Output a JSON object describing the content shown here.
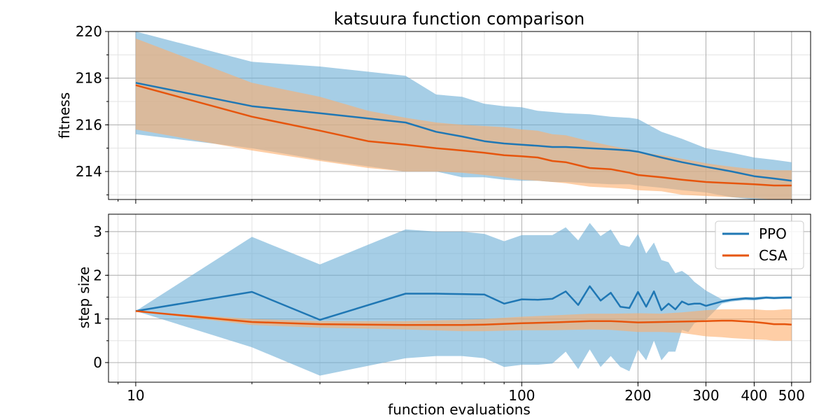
{
  "chart_data": [
    {
      "type": "line",
      "title": "katsuura function comparison",
      "xlabel": "",
      "ylabel": "fitness",
      "xscale": "log",
      "xlim": [
        8.5,
        560
      ],
      "ylim": [
        212.8,
        220.0
      ],
      "yticks": [
        214,
        216,
        218,
        220
      ],
      "grid": true,
      "series": [
        {
          "name": "PPO",
          "color": "#1f77b4",
          "band_color": "#6baed6",
          "x": [
            10,
            20,
            30,
            50,
            60,
            70,
            80,
            90,
            100,
            110,
            120,
            130,
            150,
            170,
            190,
            200,
            230,
            260,
            300,
            350,
            400,
            450,
            500
          ],
          "mean": [
            217.8,
            216.8,
            216.5,
            216.1,
            215.7,
            215.5,
            215.3,
            215.2,
            215.15,
            215.1,
            215.05,
            215.05,
            215.0,
            214.95,
            214.9,
            214.85,
            214.6,
            214.4,
            214.2,
            214.0,
            213.8,
            213.7,
            213.6
          ],
          "upper": [
            220.0,
            218.7,
            218.5,
            218.1,
            217.3,
            217.2,
            216.9,
            216.8,
            216.75,
            216.6,
            216.55,
            216.5,
            216.45,
            216.35,
            216.3,
            216.25,
            215.7,
            215.4,
            215.0,
            214.8,
            214.6,
            214.5,
            214.4
          ],
          "lower": [
            215.6,
            215.0,
            214.5,
            214.0,
            214.0,
            213.75,
            213.75,
            213.65,
            213.6,
            213.6,
            213.55,
            213.55,
            213.5,
            213.45,
            213.45,
            213.4,
            213.3,
            213.2,
            213.1,
            212.9,
            212.8,
            212.8,
            212.8
          ]
        },
        {
          "name": "CSA",
          "color": "#e6550d",
          "band_color": "#fdae6b",
          "x": [
            10,
            20,
            30,
            40,
            50,
            60,
            70,
            80,
            90,
            100,
            110,
            120,
            130,
            150,
            170,
            190,
            200,
            230,
            260,
            300,
            350,
            400,
            450,
            500
          ],
          "mean": [
            217.7,
            216.35,
            215.75,
            215.3,
            215.15,
            215.0,
            214.9,
            214.8,
            214.7,
            214.65,
            214.6,
            214.45,
            214.4,
            214.15,
            214.1,
            213.95,
            213.85,
            213.75,
            213.65,
            213.55,
            213.5,
            213.45,
            213.4,
            213.4
          ],
          "upper": [
            219.7,
            217.8,
            217.2,
            216.6,
            216.3,
            216.1,
            216.0,
            215.95,
            215.9,
            215.8,
            215.75,
            215.6,
            215.55,
            215.3,
            215.1,
            214.95,
            214.85,
            214.7,
            214.55,
            214.35,
            214.2,
            214.1,
            214.05,
            214.05
          ],
          "lower": [
            215.8,
            214.9,
            214.45,
            214.15,
            214.0,
            214.0,
            213.95,
            213.85,
            213.75,
            213.65,
            213.6,
            213.55,
            213.5,
            213.35,
            213.3,
            213.25,
            213.2,
            213.15,
            213.0,
            212.95,
            212.9,
            212.85,
            212.8,
            212.8
          ]
        }
      ]
    },
    {
      "type": "line",
      "title": "",
      "xlabel": "function evaluations",
      "ylabel": "step size",
      "xscale": "log",
      "xlim": [
        8.5,
        560
      ],
      "ylim": [
        -0.45,
        3.4
      ],
      "yticks": [
        0,
        1,
        2,
        3
      ],
      "xticks": [
        10,
        100,
        200,
        300,
        400,
        500
      ],
      "grid": true,
      "legend": "top-right",
      "series": [
        {
          "name": "PPO",
          "color": "#1f77b4",
          "band_color": "#6baed6",
          "x": [
            10,
            20,
            30,
            50,
            60,
            70,
            80,
            90,
            100,
            110,
            120,
            130,
            140,
            150,
            160,
            170,
            180,
            190,
            200,
            210,
            220,
            230,
            240,
            250,
            260,
            270,
            280,
            290,
            300,
            330,
            350,
            380,
            400,
            430,
            450,
            480,
            500
          ],
          "mean": [
            1.18,
            1.62,
            0.98,
            1.58,
            1.58,
            1.57,
            1.56,
            1.35,
            1.45,
            1.44,
            1.46,
            1.63,
            1.32,
            1.75,
            1.42,
            1.6,
            1.28,
            1.25,
            1.62,
            1.28,
            1.63,
            1.2,
            1.35,
            1.22,
            1.4,
            1.33,
            1.35,
            1.35,
            1.3,
            1.4,
            1.44,
            1.47,
            1.46,
            1.49,
            1.48,
            1.49,
            1.49
          ],
          "upper": [
            1.18,
            2.88,
            2.25,
            3.05,
            3.0,
            3.0,
            2.95,
            2.78,
            2.92,
            2.92,
            2.92,
            3.1,
            2.8,
            3.2,
            2.9,
            3.05,
            2.7,
            2.65,
            2.95,
            2.5,
            2.75,
            2.35,
            2.3,
            2.05,
            2.1,
            2.0,
            1.85,
            1.75,
            1.65,
            1.45,
            1.47,
            1.5,
            1.5,
            1.52,
            1.51,
            1.52,
            1.52
          ],
          "lower": [
            1.18,
            0.35,
            -0.3,
            0.1,
            0.15,
            0.15,
            0.1,
            -0.1,
            -0.05,
            -0.05,
            -0.02,
            0.25,
            -0.15,
            0.3,
            -0.1,
            0.15,
            -0.1,
            -0.2,
            0.3,
            0.05,
            0.5,
            0.05,
            0.25,
            0.25,
            0.75,
            0.7,
            0.9,
            0.95,
            0.98,
            1.35,
            1.4,
            1.43,
            1.42,
            1.46,
            1.45,
            1.46,
            1.46
          ]
        },
        {
          "name": "CSA",
          "color": "#e6550d",
          "band_color": "#fdae6b",
          "x": [
            10,
            20,
            30,
            50,
            70,
            80,
            100,
            120,
            150,
            170,
            200,
            230,
            260,
            300,
            330,
            350,
            400,
            430,
            450,
            480,
            500
          ],
          "mean": [
            1.18,
            0.93,
            0.88,
            0.86,
            0.86,
            0.87,
            0.9,
            0.92,
            0.95,
            0.95,
            0.92,
            0.93,
            0.94,
            0.95,
            0.96,
            0.96,
            0.93,
            0.9,
            0.88,
            0.88,
            0.87
          ],
          "upper": [
            1.18,
            1.0,
            0.95,
            0.95,
            0.98,
            1.0,
            1.05,
            1.08,
            1.12,
            1.12,
            1.13,
            1.12,
            1.15,
            1.2,
            1.22,
            1.22,
            1.22,
            1.2,
            1.2,
            1.22,
            1.22
          ],
          "lower": [
            1.18,
            0.86,
            0.8,
            0.76,
            0.72,
            0.72,
            0.74,
            0.74,
            0.76,
            0.75,
            0.7,
            0.7,
            0.68,
            0.6,
            0.58,
            0.56,
            0.53,
            0.52,
            0.5,
            0.5,
            0.5
          ]
        }
      ]
    }
  ]
}
